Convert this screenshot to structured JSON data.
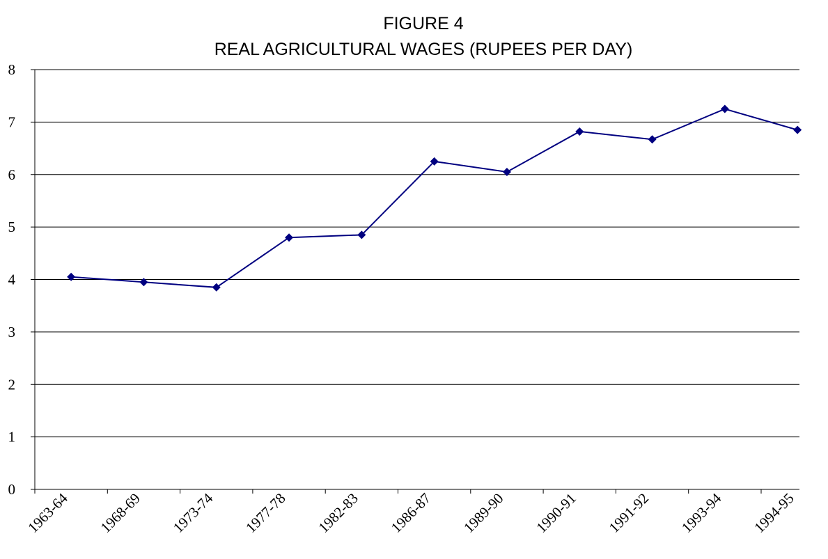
{
  "chart_data": {
    "type": "line",
    "title": "FIGURE 4",
    "subtitle": "REAL AGRICULTURAL WAGES (RUPEES PER DAY)",
    "categories": [
      "1963-64",
      "1968-69",
      "1973-74",
      "1977-78",
      "1982-83",
      "1986-87",
      "1989-90",
      "1990-91",
      "1991-92",
      "1993-94",
      "1994-95"
    ],
    "values": [
      4.05,
      3.95,
      3.85,
      4.8,
      4.85,
      6.25,
      6.05,
      6.82,
      6.67,
      7.25,
      6.85
    ],
    "color": "#000080",
    "ylim": [
      0,
      8
    ],
    "yticks": [
      0,
      1,
      2,
      3,
      4,
      5,
      6,
      7,
      8
    ],
    "grid": true
  }
}
